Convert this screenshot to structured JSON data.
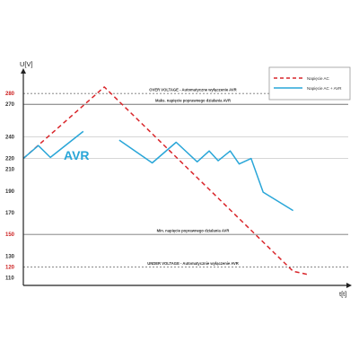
{
  "chart_data": {
    "type": "line",
    "xlabel": "t[t]",
    "ylabel": "U[V]",
    "ylim": [
      103,
      300
    ],
    "xlim": [
      0,
      100
    ],
    "y_ticks": [
      {
        "value": 280,
        "label": "280",
        "color": "#cc1f1f"
      },
      {
        "value": 270,
        "label": "270",
        "color": "#333333"
      },
      {
        "value": 240,
        "label": "240",
        "color": "#333333"
      },
      {
        "value": 220,
        "label": "220",
        "color": "#333333"
      },
      {
        "value": 210,
        "label": "210",
        "color": "#333333"
      },
      {
        "value": 190,
        "label": "190",
        "color": "#333333"
      },
      {
        "value": 170,
        "label": "170",
        "color": "#333333"
      },
      {
        "value": 150,
        "label": "150",
        "color": "#cc1f1f"
      },
      {
        "value": 130,
        "label": "130",
        "color": "#333333"
      },
      {
        "value": 120,
        "label": "120",
        "color": "#cc1f1f"
      },
      {
        "value": 110,
        "label": "110",
        "color": "#333333"
      }
    ],
    "reference_lines": [
      {
        "value": 280,
        "style": "dashed",
        "label": "OVER VOLTAGE - Automatyczne wyłączenie AVR"
      },
      {
        "value": 270,
        "style": "solid",
        "label": "Maks. napięcie poprawnego działania AVR"
      },
      {
        "value": 150,
        "style": "solid",
        "label": "Min. napięcie poprawnego działania AVR"
      },
      {
        "value": 120,
        "style": "dashed",
        "label": "UNDER VOLTAGE - Automatycznie wyłączenie AVR"
      }
    ],
    "gridlines": [
      240,
      220
    ],
    "series": [
      {
        "name": "Napięcie AC",
        "color": "#d9262b",
        "style": "dashed",
        "x": [
          0,
          27,
          90,
          95
        ],
        "y": [
          220,
          286,
          116,
          113
        ]
      },
      {
        "name": "Napięcie AC + AVR",
        "color": "#29a6d8",
        "style": "solid",
        "segments": [
          {
            "x": [
              0,
              5,
              9,
              20
            ],
            "y": [
              220,
              232,
              221,
              245
            ]
          },
          {
            "x": [
              32,
              43,
              51,
              58,
              62,
              65,
              69,
              72,
              76,
              80,
              90
            ],
            "y": [
              237,
              216,
              235,
              217,
              227,
              218,
              227,
              215,
              220,
              189,
              172
            ]
          }
        ]
      }
    ],
    "annotations": [
      "AVR"
    ],
    "legend": {
      "position": "top-right"
    }
  }
}
